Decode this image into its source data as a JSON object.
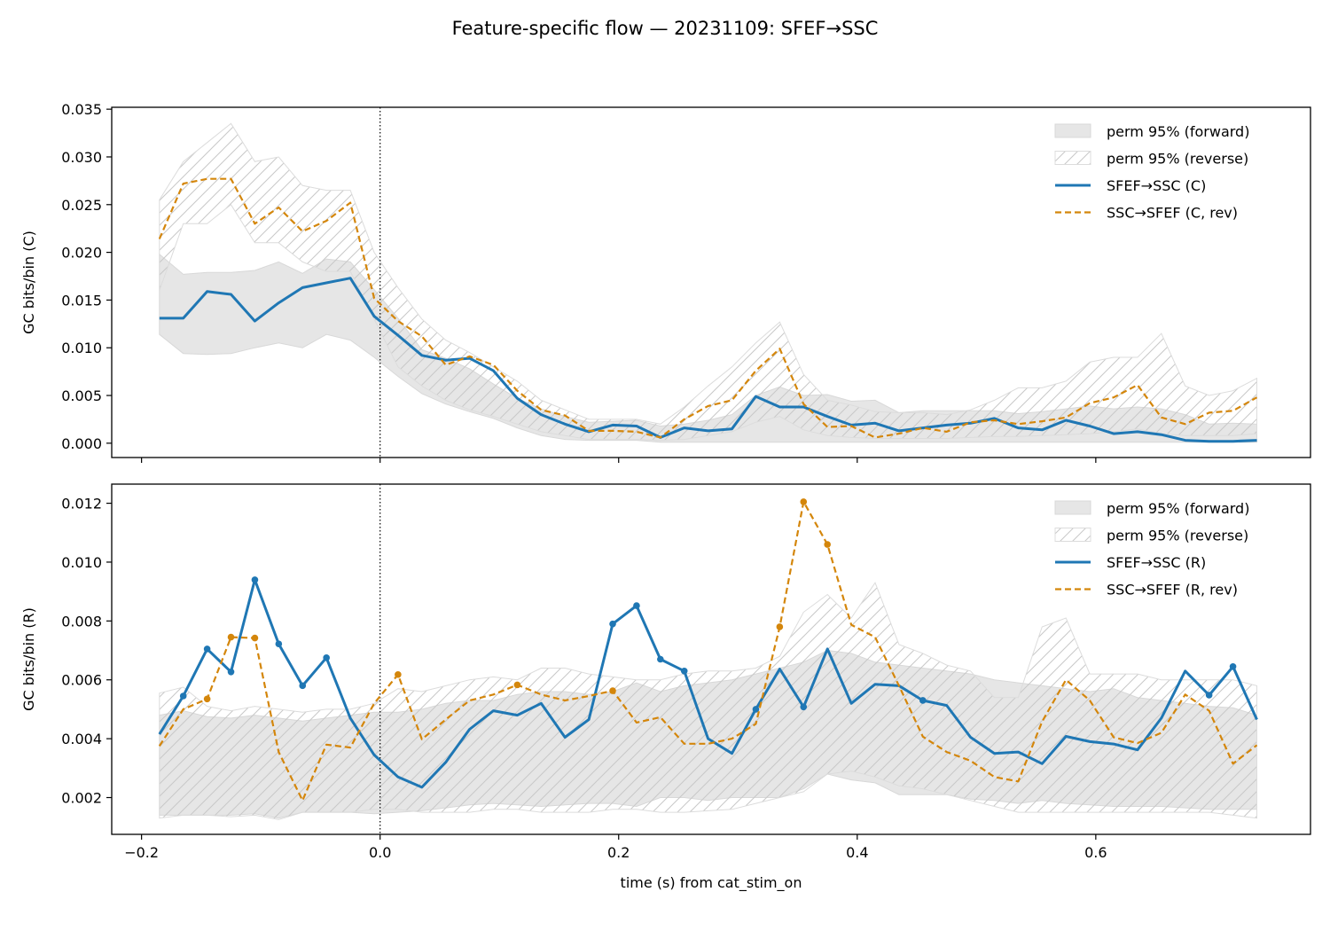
{
  "figure": {
    "title": "Feature-specific flow — 20231109: SFEF→SSC"
  },
  "colors": {
    "forward": "#1f77b4",
    "reverse": "#d4860b",
    "band": "#e6e6e6",
    "hatch": "#c8c8c8"
  },
  "shared": {
    "xlabel": "time (s) from cat_stim_on",
    "xlim": [
      -0.225,
      0.78
    ],
    "xticks": [
      -0.2,
      0.0,
      0.2,
      0.4,
      0.6
    ],
    "event_line": 0.0
  },
  "chart_data": [
    {
      "type": "line",
      "ylabel": "GC bits/bin (C)",
      "ylim": [
        -0.0015,
        0.0352
      ],
      "yticks": [
        0.0,
        0.005,
        0.01,
        0.015,
        0.02,
        0.025,
        0.03,
        0.035
      ],
      "ytick_decimals": 3,
      "legend": {
        "position": "top-right",
        "entries": [
          "perm 95% (forward)",
          "perm 95% (reverse)",
          "SFEF→SSC (C)",
          "SSC→SFEF (C, rev)"
        ]
      },
      "x": [
        -0.185,
        -0.165,
        -0.145,
        -0.125,
        -0.105,
        -0.085,
        -0.065,
        -0.045,
        -0.025,
        -0.005,
        0.015,
        0.035,
        0.055,
        0.075,
        0.095,
        0.115,
        0.135,
        0.155,
        0.175,
        0.195,
        0.215,
        0.235,
        0.255,
        0.275,
        0.295,
        0.315,
        0.335,
        0.355,
        0.375,
        0.395,
        0.415,
        0.435,
        0.455,
        0.475,
        0.495,
        0.515,
        0.535,
        0.555,
        0.575,
        0.595,
        0.615,
        0.635,
        0.655,
        0.675,
        0.695,
        0.715,
        0.735
      ],
      "series": [
        {
          "name": "SFEF→SSC (C)",
          "style": "solid",
          "markers": false,
          "values": [
            0.0131,
            0.0131,
            0.0159,
            0.0156,
            0.0128,
            0.0147,
            0.0163,
            0.0168,
            0.0173,
            0.0133,
            0.0113,
            0.0092,
            0.0087,
            0.0089,
            0.0076,
            0.0047,
            0.003,
            0.002,
            0.0012,
            0.0019,
            0.0018,
            0.0006,
            0.0016,
            0.0013,
            0.0015,
            0.0049,
            0.0038,
            0.0038,
            0.0028,
            0.0019,
            0.0021,
            0.0013,
            0.0016,
            0.0019,
            0.0021,
            0.0026,
            0.0016,
            0.0014,
            0.0024,
            0.0018,
            0.001,
            0.0012,
            0.0009,
            0.0003,
            0.0002,
            0.0002,
            0.0003
          ]
        },
        {
          "name": "SSC→SFEF (C, rev)",
          "style": "dashed",
          "markers": false,
          "values": [
            0.0214,
            0.0272,
            0.0277,
            0.0277,
            0.023,
            0.0247,
            0.0222,
            0.0233,
            0.0252,
            0.0152,
            0.0128,
            0.0112,
            0.0082,
            0.0091,
            0.0082,
            0.0055,
            0.0035,
            0.0029,
            0.0013,
            0.0013,
            0.0012,
            0.0006,
            0.0025,
            0.0039,
            0.0045,
            0.0076,
            0.0099,
            0.0041,
            0.0017,
            0.0018,
            0.0006,
            0.001,
            0.0016,
            0.0012,
            0.0022,
            0.0024,
            0.002,
            0.0023,
            0.0027,
            0.0042,
            0.0048,
            0.0061,
            0.0027,
            0.002,
            0.0032,
            0.0034,
            0.0048
          ]
        }
      ],
      "bands": [
        {
          "name": "perm 95% (forward)",
          "fill": "solid",
          "lower": [
            0.0114,
            0.0094,
            0.0093,
            0.0094,
            0.01,
            0.0105,
            0.01,
            0.0114,
            0.0108,
            0.009,
            0.007,
            0.0052,
            0.0041,
            0.0033,
            0.0026,
            0.0016,
            0.0008,
            0.0004,
            0.0003,
            0.0003,
            0.0003,
            0.0001,
            0.0001,
            0.0001,
            0.0001,
            0.0001,
            0.0001,
            0.0001,
            0.0001,
            0.0001,
            0.0001,
            0.0001,
            0.0001,
            0.0001,
            0.0001,
            0.0001,
            0.0001,
            0.0001,
            0.0001,
            0.0001,
            0.0001,
            0.0001,
            0.0001,
            0.0001,
            0.0001,
            0.0001,
            0.0001
          ],
          "upper": [
            0.0198,
            0.0177,
            0.0179,
            0.0179,
            0.0181,
            0.019,
            0.0178,
            0.0193,
            0.019,
            0.0161,
            0.0131,
            0.0098,
            0.0089,
            0.0078,
            0.0062,
            0.0047,
            0.0036,
            0.0028,
            0.0022,
            0.0023,
            0.0024,
            0.0018,
            0.002,
            0.0024,
            0.003,
            0.005,
            0.0059,
            0.005,
            0.0051,
            0.0044,
            0.0045,
            0.0032,
            0.0034,
            0.0034,
            0.0034,
            0.0034,
            0.0031,
            0.0033,
            0.0036,
            0.0039,
            0.0036,
            0.0038,
            0.0036,
            0.003,
            0.002,
            0.0021,
            0.002
          ]
        },
        {
          "name": "perm 95% (reverse)",
          "fill": "hatch",
          "lower": [
            0.016,
            0.023,
            0.023,
            0.025,
            0.021,
            0.021,
            0.019,
            0.018,
            0.018,
            0.013,
            0.008,
            0.006,
            0.0045,
            0.0035,
            0.0028,
            0.002,
            0.0012,
            0.0008,
            0.0004,
            0.0004,
            0.0004,
            0.0003,
            0.0004,
            0.0008,
            0.0012,
            0.0022,
            0.0028,
            0.0014,
            0.0008,
            0.0006,
            0.0005,
            0.0005,
            0.0005,
            0.0005,
            0.0006,
            0.0007,
            0.0007,
            0.0008,
            0.0009,
            0.001,
            0.0012,
            0.0015,
            0.001,
            0.0008,
            0.0008,
            0.0008,
            0.001
          ],
          "upper": [
            0.0255,
            0.0295,
            0.0315,
            0.0335,
            0.0295,
            0.03,
            0.027,
            0.0265,
            0.0265,
            0.02,
            0.0163,
            0.013,
            0.0108,
            0.0095,
            0.008,
            0.0065,
            0.0045,
            0.0035,
            0.0025,
            0.0025,
            0.0025,
            0.002,
            0.0038,
            0.006,
            0.008,
            0.0105,
            0.0127,
            0.0072,
            0.0045,
            0.004,
            0.0033,
            0.0032,
            0.0032,
            0.003,
            0.0035,
            0.0045,
            0.0058,
            0.0058,
            0.0065,
            0.0085,
            0.009,
            0.009,
            0.0115,
            0.006,
            0.005,
            0.0055,
            0.0068
          ]
        }
      ]
    },
    {
      "type": "line",
      "ylabel": "GC bits/bin (R)",
      "ylim": [
        0.00075,
        0.01265
      ],
      "yticks": [
        0.002,
        0.004,
        0.006,
        0.008,
        0.01,
        0.012
      ],
      "ytick_decimals": 3,
      "legend": {
        "position": "top-right",
        "entries": [
          "perm 95% (forward)",
          "perm 95% (reverse)",
          "SFEF→SSC (R)",
          "SSC→SFEF (R, rev)"
        ]
      },
      "x": [
        -0.185,
        -0.165,
        -0.145,
        -0.125,
        -0.105,
        -0.085,
        -0.065,
        -0.045,
        -0.025,
        -0.005,
        0.015,
        0.035,
        0.055,
        0.075,
        0.095,
        0.115,
        0.135,
        0.155,
        0.175,
        0.195,
        0.215,
        0.235,
        0.255,
        0.275,
        0.295,
        0.315,
        0.335,
        0.355,
        0.375,
        0.395,
        0.415,
        0.435,
        0.455,
        0.475,
        0.495,
        0.515,
        0.535,
        0.555,
        0.575,
        0.595,
        0.615,
        0.635,
        0.655,
        0.675,
        0.695,
        0.715,
        0.735
      ],
      "series": [
        {
          "name": "SFEF→SSC (R)",
          "style": "solid",
          "markers": true,
          "marker_indices": [
            1,
            2,
            3,
            4,
            5,
            6,
            7,
            19,
            20,
            21,
            22,
            25,
            27,
            32,
            44,
            45
          ],
          "values": [
            0.00415,
            0.00545,
            0.00705,
            0.00627,
            0.0094,
            0.00722,
            0.0058,
            0.00675,
            0.0047,
            0.00345,
            0.0027,
            0.00235,
            0.0032,
            0.00432,
            0.00495,
            0.0048,
            0.0052,
            0.00405,
            0.00465,
            0.0079,
            0.00852,
            0.0067,
            0.0063,
            0.004,
            0.0035,
            0.005,
            0.00637,
            0.00508,
            0.00705,
            0.0052,
            0.00585,
            0.0058,
            0.0053,
            0.00513,
            0.00405,
            0.0035,
            0.00355,
            0.00315,
            0.00408,
            0.0039,
            0.00382,
            0.00362,
            0.0047,
            0.0063,
            0.00548,
            0.00645,
            0.00465
          ]
        },
        {
          "name": "SSC→SFEF (R, rev)",
          "style": "dashed",
          "markers": true,
          "marker_indices": [
            2,
            3,
            4,
            10,
            15,
            19,
            26,
            27,
            28
          ],
          "values": [
            0.00375,
            0.005,
            0.00535,
            0.00745,
            0.00742,
            0.00355,
            0.0019,
            0.0038,
            0.0037,
            0.0052,
            0.00618,
            0.00398,
            0.00465,
            0.0053,
            0.0055,
            0.00583,
            0.0055,
            0.0053,
            0.00545,
            0.00563,
            0.00455,
            0.00473,
            0.00383,
            0.00383,
            0.004,
            0.0045,
            0.0078,
            0.01205,
            0.0106,
            0.00787,
            0.00745,
            0.0058,
            0.00407,
            0.00355,
            0.00325,
            0.0027,
            0.00255,
            0.00458,
            0.006,
            0.0053,
            0.00405,
            0.00385,
            0.0042,
            0.0055,
            0.00495,
            0.00315,
            0.00378
          ]
        }
      ],
      "bands": [
        {
          "name": "perm 95% (forward)",
          "fill": "solid",
          "lower": [
            0.0014,
            0.0014,
            0.0014,
            0.0014,
            0.00145,
            0.0013,
            0.0015,
            0.0015,
            0.0015,
            0.00145,
            0.0015,
            0.00155,
            0.00165,
            0.00175,
            0.0018,
            0.00175,
            0.0017,
            0.00175,
            0.0018,
            0.0018,
            0.0017,
            0.002,
            0.002,
            0.0019,
            0.002,
            0.002,
            0.002,
            0.0023,
            0.0028,
            0.0026,
            0.0025,
            0.0021,
            0.0021,
            0.0021,
            0.00195,
            0.0019,
            0.0018,
            0.0019,
            0.0018,
            0.00175,
            0.0017,
            0.0017,
            0.0017,
            0.00165,
            0.0016,
            0.0016,
            0.0016
          ],
          "upper": [
            0.0048,
            0.00495,
            0.00475,
            0.0047,
            0.0048,
            0.0047,
            0.0046,
            0.0047,
            0.0048,
            0.0049,
            0.0049,
            0.005,
            0.0052,
            0.0053,
            0.0053,
            0.0055,
            0.0056,
            0.0056,
            0.0055,
            0.0056,
            0.0059,
            0.0056,
            0.0058,
            0.0059,
            0.006,
            0.0062,
            0.0064,
            0.0066,
            0.007,
            0.0069,
            0.0066,
            0.0065,
            0.0064,
            0.0063,
            0.0062,
            0.006,
            0.0059,
            0.0058,
            0.0057,
            0.0056,
            0.0057,
            0.0054,
            0.0053,
            0.0052,
            0.0051,
            0.00505,
            0.0048
          ]
        },
        {
          "name": "perm 95% (reverse)",
          "fill": "hatch",
          "lower": [
            0.0013,
            0.0014,
            0.0014,
            0.00135,
            0.0014,
            0.00125,
            0.0015,
            0.0015,
            0.0015,
            0.0016,
            0.0016,
            0.0015,
            0.0015,
            0.0015,
            0.0016,
            0.0016,
            0.0015,
            0.0015,
            0.0015,
            0.0016,
            0.0016,
            0.0015,
            0.0015,
            0.00155,
            0.0016,
            0.0018,
            0.002,
            0.0022,
            0.0028,
            0.0029,
            0.0027,
            0.0024,
            0.0023,
            0.0021,
            0.0019,
            0.0017,
            0.0015,
            0.0015,
            0.0015,
            0.0015,
            0.0015,
            0.0015,
            0.0015,
            0.0015,
            0.0015,
            0.0014,
            0.0013
          ],
          "upper": [
            0.00555,
            0.00575,
            0.0051,
            0.00495,
            0.0051,
            0.005,
            0.0049,
            0.005,
            0.005,
            0.0052,
            0.0057,
            0.0056,
            0.0058,
            0.006,
            0.0061,
            0.006,
            0.0064,
            0.0064,
            0.0062,
            0.0061,
            0.006,
            0.006,
            0.0062,
            0.0063,
            0.0063,
            0.0064,
            0.0068,
            0.0083,
            0.0089,
            0.0081,
            0.0093,
            0.0072,
            0.0069,
            0.0065,
            0.0063,
            0.0054,
            0.0054,
            0.0078,
            0.0081,
            0.0062,
            0.0062,
            0.0062,
            0.006,
            0.006,
            0.006,
            0.006,
            0.0058
          ]
        }
      ]
    }
  ]
}
